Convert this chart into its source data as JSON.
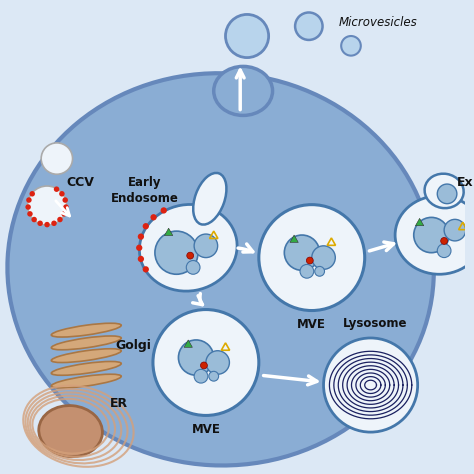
{
  "bg_outer": "#dce8f5",
  "bg_white": "#ffffff",
  "cell_fill": "#8aadd4",
  "cell_edge": "#6688bb",
  "membrane_fill": "#a8c4e0",
  "vesicle_fill": "#c8dff0",
  "vesicle_fill2": "#9abcd8",
  "vesicle_edge": "#4477aa",
  "white_vesicle_fill": "#eef4fa",
  "er_fill": "#d4a07a",
  "er_edge": "#aa7744",
  "nucleus_fill": "#c49070",
  "nucleus_edge": "#996644",
  "golgi_fill": "#d4a87a",
  "golgi_edge": "#aa7744",
  "lyso_line": "#1a2060",
  "red_color": "#cc2200",
  "green_color": "#33aa44",
  "yellow_color": "#ddaa00",
  "orange_color": "#dd8800",
  "arrow_fill": "#ffffff",
  "arrow_edge": "#cccccc",
  "text_color": "#111111",
  "ccv_red": "#dd2211",
  "label_microvesicles": "Microvesicles",
  "label_ex": "Ex",
  "label_ccv": "CCV",
  "label_early": "Early\nEndosome",
  "label_golgi": "Golgi",
  "label_er": "ER",
  "label_mve": "MVE",
  "label_lyso": "Lysosome"
}
